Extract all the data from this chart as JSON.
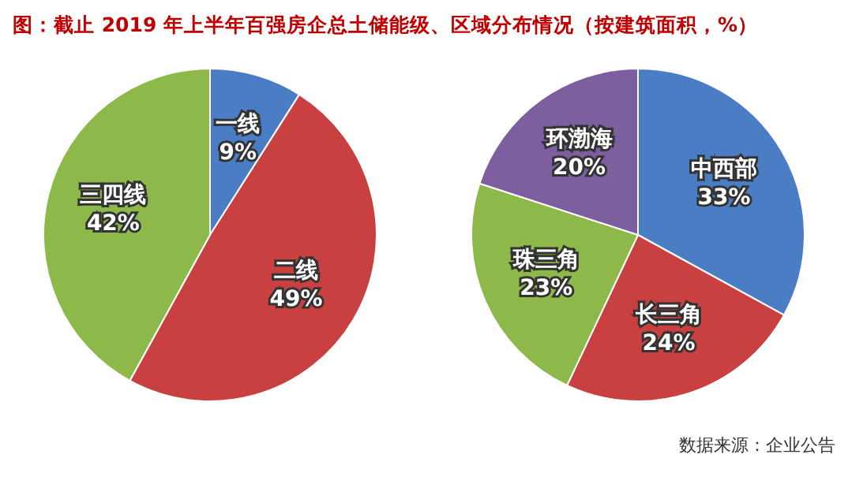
{
  "chart_data": [
    {
      "type": "pie",
      "title": "图：截止 2019 年上半年百强房企总土储能级、区域分布情况（按建筑面积，%）",
      "categories": [
        "一线",
        "二线",
        "三四线"
      ],
      "values": [
        9,
        49,
        42
      ],
      "value_labels": [
        "9%",
        "49%",
        "42%"
      ],
      "colors": [
        "#4a7dc3",
        "#c8403f",
        "#8db94a"
      ],
      "legend": false
    },
    {
      "type": "pie",
      "categories": [
        "中西部",
        "长三角",
        "珠三角",
        "环渤海"
      ],
      "values": [
        33,
        24,
        23,
        20
      ],
      "value_labels": [
        "33%",
        "24%",
        "23%",
        "20%"
      ],
      "colors": [
        "#4a7dc3",
        "#c8403f",
        "#8db94a",
        "#7d5fa0"
      ],
      "legend": false,
      "annotations": [
        "数据来源：企业公告"
      ]
    }
  ]
}
